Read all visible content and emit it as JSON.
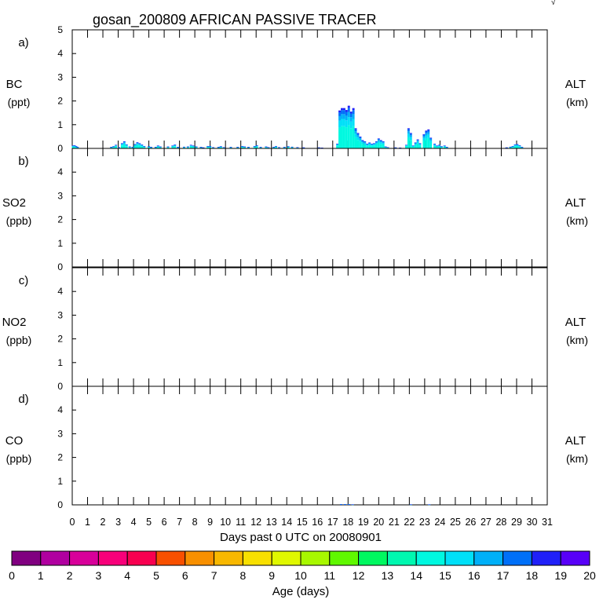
{
  "chart_data": {
    "type": "bar",
    "title": "gosan_200809 AFRICAN PASSIVE TRACER",
    "corner_mark": "√",
    "xlabel": "Days past 0 UTC on 20080901",
    "xlim": [
      0,
      31
    ],
    "x_ticks": [
      "0",
      "1",
      "2",
      "3",
      "4",
      "5",
      "6",
      "7",
      "8",
      "9",
      "10",
      "11",
      "12",
      "13",
      "14",
      "15",
      "16",
      "17",
      "18",
      "19",
      "20",
      "21",
      "22",
      "23",
      "24",
      "25",
      "26",
      "27",
      "28",
      "29",
      "30",
      "31"
    ],
    "y_ticks": [
      "0",
      "1",
      "2",
      "3",
      "4"
    ],
    "ylim": [
      0,
      5
    ],
    "panels": [
      {
        "letter": "a)",
        "species": "BC",
        "unit": "(ppt)",
        "right_label": "ALT",
        "right_unit": "(km)",
        "top_tick": "5",
        "bars": [
          [
            0.05,
            0.12
          ],
          [
            0.15,
            0.13
          ],
          [
            0.25,
            0.1
          ],
          [
            0.35,
            0.06
          ],
          [
            2.55,
            0.06
          ],
          [
            2.7,
            0.09
          ],
          [
            2.85,
            0.15
          ],
          [
            3.05,
            0.05
          ],
          [
            3.25,
            0.22
          ],
          [
            3.4,
            0.3
          ],
          [
            3.55,
            0.17
          ],
          [
            3.75,
            0.08
          ],
          [
            3.95,
            0.06
          ],
          [
            4.1,
            0.18
          ],
          [
            4.25,
            0.26
          ],
          [
            4.4,
            0.22
          ],
          [
            4.55,
            0.16
          ],
          [
            4.7,
            0.1
          ],
          [
            5.0,
            0.09
          ],
          [
            5.15,
            0.06
          ],
          [
            5.45,
            0.06
          ],
          [
            5.6,
            0.12
          ],
          [
            5.75,
            0.08
          ],
          [
            6.25,
            0.08
          ],
          [
            6.55,
            0.12
          ],
          [
            6.7,
            0.16
          ],
          [
            6.9,
            0.06
          ],
          [
            7.3,
            0.07
          ],
          [
            7.55,
            0.08
          ],
          [
            7.75,
            0.15
          ],
          [
            7.9,
            0.12
          ],
          [
            8.1,
            0.08
          ],
          [
            8.4,
            0.06
          ],
          [
            8.55,
            0.04
          ],
          [
            8.85,
            0.1
          ],
          [
            9.0,
            0.1
          ],
          [
            9.2,
            0.05
          ],
          [
            9.55,
            0.06
          ],
          [
            9.7,
            0.09
          ],
          [
            9.9,
            0.05
          ],
          [
            10.35,
            0.06
          ],
          [
            10.8,
            0.06
          ],
          [
            11.1,
            0.1
          ],
          [
            11.25,
            0.08
          ],
          [
            11.5,
            0.06
          ],
          [
            11.9,
            0.1
          ],
          [
            12.05,
            0.13
          ],
          [
            12.3,
            0.06
          ],
          [
            12.65,
            0.08
          ],
          [
            12.8,
            0.05
          ],
          [
            13.15,
            0.06
          ],
          [
            13.3,
            0.1
          ],
          [
            13.5,
            0.05
          ],
          [
            13.85,
            0.06
          ],
          [
            14.1,
            0.09
          ],
          [
            14.35,
            0.07
          ],
          [
            14.7,
            0.05
          ],
          [
            15.1,
            0.04
          ],
          [
            16.1,
            0.04
          ],
          [
            16.3,
            0.03
          ],
          [
            17.3,
            0.2
          ],
          [
            17.45,
            1.6
          ],
          [
            17.6,
            1.7
          ],
          [
            17.75,
            1.7
          ],
          [
            17.9,
            1.62
          ],
          [
            18.05,
            1.8
          ],
          [
            18.2,
            1.55
          ],
          [
            18.35,
            1.7
          ],
          [
            18.5,
            0.85
          ],
          [
            18.65,
            0.65
          ],
          [
            18.8,
            0.5
          ],
          [
            18.95,
            0.35
          ],
          [
            19.1,
            0.3
          ],
          [
            19.25,
            0.2
          ],
          [
            19.4,
            0.25
          ],
          [
            19.55,
            0.2
          ],
          [
            19.7,
            0.22
          ],
          [
            19.85,
            0.3
          ],
          [
            20.0,
            0.42
          ],
          [
            20.15,
            0.35
          ],
          [
            20.3,
            0.3
          ],
          [
            20.45,
            0.08
          ],
          [
            20.6,
            0.05
          ],
          [
            21.1,
            0.04
          ],
          [
            21.4,
            0.03
          ],
          [
            21.8,
            0.15
          ],
          [
            21.95,
            0.85
          ],
          [
            22.1,
            0.65
          ],
          [
            22.25,
            0.12
          ],
          [
            22.4,
            0.25
          ],
          [
            22.55,
            0.38
          ],
          [
            22.7,
            0.22
          ],
          [
            22.95,
            0.6
          ],
          [
            23.1,
            0.75
          ],
          [
            23.25,
            0.8
          ],
          [
            23.4,
            0.45
          ],
          [
            23.65,
            0.2
          ],
          [
            23.8,
            0.12
          ],
          [
            23.95,
            0.15
          ],
          [
            24.1,
            0.09
          ],
          [
            24.3,
            0.12
          ],
          [
            24.45,
            0.06
          ],
          [
            28.35,
            0.04
          ],
          [
            28.6,
            0.07
          ],
          [
            28.75,
            0.1
          ],
          [
            28.9,
            0.17
          ],
          [
            29.05,
            0.18
          ],
          [
            29.2,
            0.13
          ],
          [
            29.35,
            0.06
          ]
        ]
      },
      {
        "letter": "b)",
        "species": "SO2",
        "unit": "(ppb)",
        "right_label": "ALT",
        "right_unit": "(km)",
        "top_tick": "",
        "bars": []
      },
      {
        "letter": "c)",
        "species": "NO2",
        "unit": "(ppb)",
        "right_label": "ALT",
        "right_unit": "(km)",
        "top_tick": "",
        "bars": []
      },
      {
        "letter": "d)",
        "species": "CO",
        "unit": "(ppb)",
        "right_label": "ALT",
        "right_unit": "(km)",
        "top_tick": "",
        "bars": [
          [
            17.55,
            0.03
          ],
          [
            17.8,
            0.03
          ],
          [
            18.05,
            0.03
          ],
          [
            18.3,
            0.02
          ],
          [
            22.1,
            0.02
          ],
          [
            23.3,
            0.02
          ]
        ]
      }
    ],
    "colorbar": {
      "label": "Age (days)",
      "tick_labels": [
        "0",
        "1",
        "2",
        "3",
        "4",
        "5",
        "6",
        "7",
        "8",
        "9",
        "10",
        "11",
        "12",
        "13",
        "14",
        "15",
        "16",
        "17",
        "18",
        "19",
        "20"
      ],
      "colors": [
        "#800080",
        "#b000a0",
        "#d8009a",
        "#f8007a",
        "#f80050",
        "#f85000",
        "#f89000",
        "#f8b800",
        "#f8e000",
        "#e0f800",
        "#a8f800",
        "#60f800",
        "#00f860",
        "#00f8b0",
        "#00f8e0",
        "#00e0f8",
        "#00b0f8",
        "#0070f8",
        "#2020f8",
        "#5800f8"
      ]
    },
    "bar_color_bands": [
      "#00f8e0",
      "#00e0f8",
      "#00b0f8",
      "#0070f8",
      "#2020f8"
    ]
  }
}
